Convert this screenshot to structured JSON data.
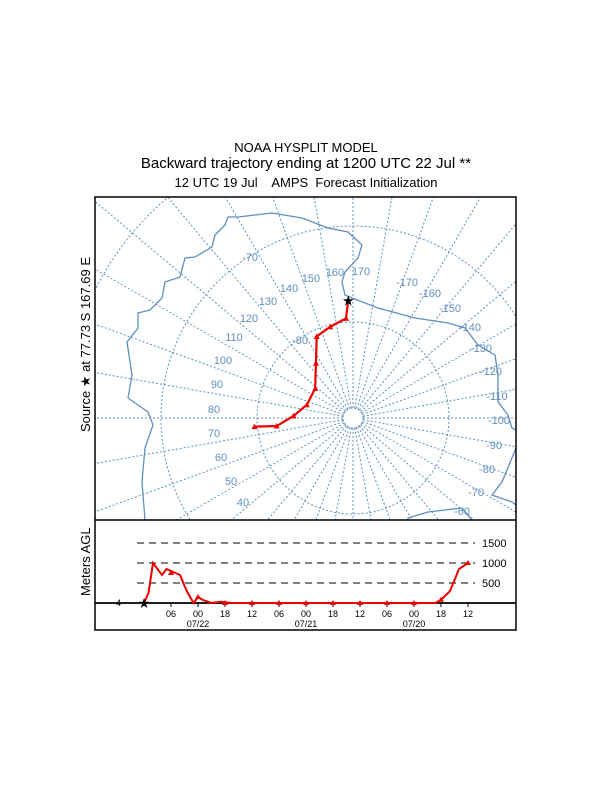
{
  "title": {
    "line1": "NOAA HYSPLIT MODEL",
    "line2": "Backward trajectory ending at 1200 UTC 22 Jul **",
    "line3": "12 UTC 19 Jul    AMPS  Forecast Initialization"
  },
  "source_label": "Source ★ at  77.73 S  167.69 E",
  "colors": {
    "grid": "#5f8fbf",
    "trajectory": "#ee0000",
    "frame": "#000000"
  },
  "chart_data": [
    {
      "type": "map-trajectory",
      "projection": "south polar stereographic",
      "meridian_labels": [
        "-70",
        "150",
        "160",
        "170",
        "-170",
        "-160",
        "-150",
        "-140",
        "-130",
        "-120",
        "-110",
        "-100",
        "-90",
        "-80",
        "-70",
        "-60",
        "140",
        "130",
        "120",
        "110",
        "100",
        "90",
        "80",
        "70",
        "60",
        "50",
        "40",
        "-80"
      ],
      "latitude_circles": [
        -80,
        -70,
        -60
      ],
      "source": {
        "lat": -77.73,
        "lon": 167.69
      },
      "trajectory": [
        {
          "lat": -77.7,
          "lon": 167.7
        },
        {
          "lat": -79.6,
          "lon": 166
        },
        {
          "lat": -80.2,
          "lon": 156
        },
        {
          "lat": -80.7,
          "lon": 146
        },
        {
          "lat": -83.1,
          "lon": 136
        },
        {
          "lat": -85.0,
          "lon": 118
        },
        {
          "lat": -85.0,
          "lon": 96
        },
        {
          "lat": -83.8,
          "lon": 82
        },
        {
          "lat": -82.0,
          "lon": 74
        },
        {
          "lat": -79.7,
          "lon": 75
        }
      ]
    },
    {
      "type": "line",
      "ylabel": "Meters AGL",
      "y_ticks": [
        "500",
        "1000",
        "1500"
      ],
      "y_values": [
        500,
        1000,
        1500
      ],
      "ylim": [
        0,
        1750
      ],
      "left_axis_label": "4",
      "x_tick_labels": [
        "06",
        "00",
        "18",
        "12",
        "06",
        "00",
        "18",
        "12",
        "06",
        "00",
        "18",
        "12"
      ],
      "x_tick_hours_back": [
        6,
        12,
        18,
        24,
        30,
        36,
        42,
        48,
        54,
        60,
        66,
        72
      ],
      "date_labels": [
        {
          "text": "07/22",
          "hours_back": 12
        },
        {
          "text": "07/21",
          "hours_back": 36
        },
        {
          "text": "07/20",
          "hours_back": 60
        }
      ],
      "series": [
        {
          "name": "trajectory height",
          "hours_back": [
            0,
            1,
            2,
            4,
            5,
            7,
            8,
            9.5,
            11,
            12,
            13,
            15,
            17,
            19.5,
            24,
            30,
            36,
            42,
            48,
            54,
            60,
            64.7,
            66,
            68,
            70,
            72
          ],
          "height_m": [
            0,
            250,
            1000,
            700,
            850,
            750,
            700,
            300,
            0,
            150,
            80,
            0,
            30,
            0,
            0,
            0,
            0,
            0,
            0,
            0,
            0,
            0,
            80,
            300,
            850,
            1000
          ]
        }
      ]
    }
  ]
}
